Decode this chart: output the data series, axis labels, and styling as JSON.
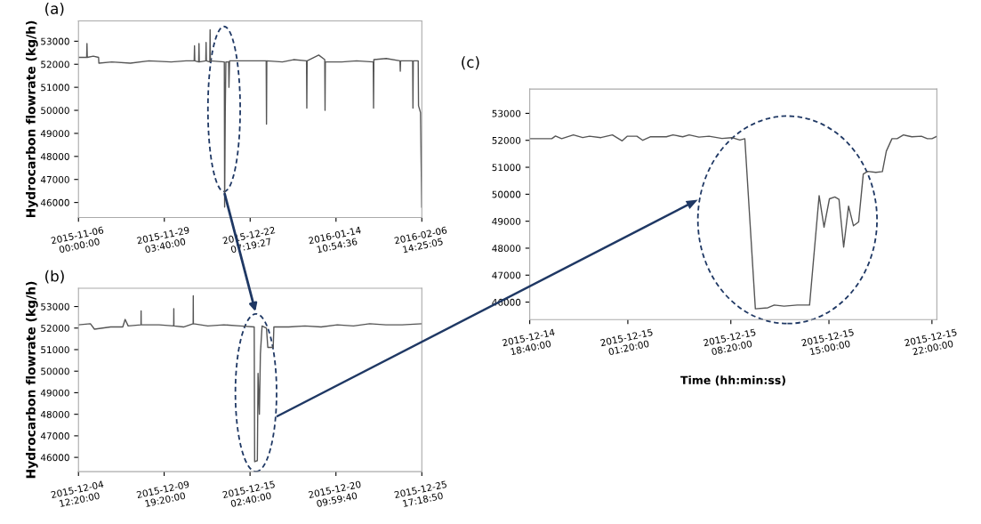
{
  "chart_data": [
    {
      "type": "line",
      "title": "(a)",
      "ylabel": "Hydrocarbon flowrate (kg/h)",
      "color": "#555555",
      "grid": false,
      "legend": false,
      "x": [
        "2015-11-06T00:00",
        "2015-11-08T05:00",
        "2015-11-08T07:00",
        "2015-11-08T09:00",
        "2015-11-10T00:00",
        "2015-11-11T10:00",
        "2015-11-11T12:00",
        "2015-11-15T00:00",
        "2015-11-20T00:00",
        "2015-11-25T00:00",
        "2015-12-01T00:00",
        "2015-12-05T00:00",
        "2015-12-07T05:00",
        "2015-12-07T07:00",
        "2015-12-07T09:00",
        "2015-12-08T10:00",
        "2015-12-08T12:00",
        "2015-12-08T14:00",
        "2015-12-10T08:00",
        "2015-12-10T10:00",
        "2015-12-10T12:00",
        "2015-12-11T10:00",
        "2015-12-11T12:00",
        "2015-12-11T14:00",
        "2015-12-15T08:00",
        "2015-12-15T10:00",
        "2015-12-15T14:00",
        "2015-12-15T18:00",
        "2015-12-16T12:00",
        "2015-12-16T14:00",
        "2015-12-16T18:00",
        "2015-12-20T00:00",
        "2015-12-26T15:00",
        "2015-12-26T17:00",
        "2015-12-26T19:00",
        "2015-12-31T00:00",
        "2016-01-03T00:00",
        "2016-01-06T12:00",
        "2016-01-06T14:00",
        "2016-01-06T16:00",
        "2016-01-09T19:00",
        "2016-01-11T10:00",
        "2016-01-11T12:00",
        "2016-01-11T14:00",
        "2016-01-16T00:00",
        "2016-01-20T00:00",
        "2016-01-24T12:00",
        "2016-01-24T14:00",
        "2016-01-24T16:00",
        "2016-01-28T00:00",
        "2016-01-31T17:00",
        "2016-01-31T19:00",
        "2016-01-31T21:00",
        "2016-02-04T03:00",
        "2016-02-04T05:00",
        "2016-02-04T07:00",
        "2016-02-05T15:00",
        "2016-02-05T17:00",
        "2016-02-06T06:00",
        "2016-02-06T10:00",
        "2016-02-06T14:00"
      ],
      "values": [
        52300,
        52300,
        52900,
        52300,
        52350,
        52300,
        52050,
        52100,
        52050,
        52150,
        52100,
        52150,
        52150,
        52800,
        52150,
        52100,
        52900,
        52100,
        52150,
        52950,
        52150,
        52100,
        53500,
        52150,
        52100,
        45800,
        49900,
        52100,
        52100,
        51000,
        52150,
        52150,
        52150,
        49400,
        52150,
        52100,
        52200,
        52150,
        50100,
        52150,
        52400,
        52200,
        50000,
        52100,
        52100,
        52150,
        52100,
        50100,
        52200,
        52250,
        52150,
        51700,
        52150,
        52150,
        50100,
        52150,
        52150,
        50200,
        49900,
        47700,
        45800
      ],
      "xlim": [
        "2015-11-06T00:00:00",
        "2016-02-06T14:25:05"
      ],
      "ylim": [
        45350,
        53880
      ],
      "xticks": [
        {
          "value": "2015-11-06T00:00:00",
          "label": "2015-11-06\n00:00:00"
        },
        {
          "value": "2015-11-29T03:40:00",
          "label": "2015-11-29\n03:40:00"
        },
        {
          "value": "2015-12-22T07:19:27",
          "label": "2015-12-22\n07:19:27"
        },
        {
          "value": "2016-01-14T10:54:36",
          "label": "2016-01-14\n10:54:36"
        },
        {
          "value": "2016-02-06T14:25:05",
          "label": "2016-02-06\n14:25:05"
        }
      ],
      "yticks": [
        46000,
        47000,
        48000,
        49000,
        50000,
        51000,
        52000,
        53000
      ]
    },
    {
      "type": "line",
      "title": "(b)",
      "ylabel": "Hydrocarbon flowrate (kg/h)",
      "color": "#555555",
      "grid": false,
      "legend": false,
      "x": [
        "2015-12-04T12:20",
        "2015-12-05T06:00",
        "2015-12-05T12:00",
        "2015-12-06T12:00",
        "2015-12-07T06:00",
        "2015-12-07T09:30",
        "2015-12-07T14:00",
        "2015-12-08T09:00",
        "2015-12-08T09:10",
        "2015-12-08T09:20",
        "2015-12-09T12:00",
        "2015-12-10T09:30",
        "2015-12-10T09:40",
        "2015-12-10T09:50",
        "2015-12-11T00:00",
        "2015-12-11T14:20",
        "2015-12-11T14:30",
        "2015-12-11T14:40",
        "2015-12-12T12:00",
        "2015-12-13T12:00",
        "2015-12-14T12:00",
        "2015-12-15T08:50",
        "2015-12-15T09:30",
        "2015-12-15T13:30",
        "2015-12-15T14:30",
        "2015-12-15T16:30",
        "2015-12-15T18:00",
        "2015-12-15T20:30",
        "2015-12-16T03:00",
        "2015-12-16T05:00",
        "2015-12-16T13:00",
        "2015-12-16T14:00",
        "2015-12-17T12:00",
        "2015-12-18T12:00",
        "2015-12-19T12:00",
        "2015-12-20T12:00",
        "2015-12-21T12:00",
        "2015-12-22T12:00",
        "2015-12-23T12:00",
        "2015-12-24T12:00",
        "2015-12-25T17:18"
      ],
      "values": [
        52150,
        52200,
        51950,
        52050,
        52050,
        52400,
        52100,
        52150,
        52800,
        52150,
        52150,
        52100,
        52900,
        52100,
        52050,
        52200,
        53500,
        52200,
        52100,
        52150,
        52100,
        52050,
        45800,
        45850,
        49900,
        48000,
        50800,
        52100,
        52000,
        51100,
        51100,
        52050,
        52050,
        52100,
        52050,
        52150,
        52100,
        52200,
        52150,
        52150,
        52200
      ],
      "xlim": [
        "2015-12-04T12:20:00",
        "2015-12-25T17:18:50"
      ],
      "ylim": [
        45340,
        53850
      ],
      "xticks": [
        {
          "value": "2015-12-04T12:20:00",
          "label": "2015-12-04\n12:20:00"
        },
        {
          "value": "2015-12-09T19:20:00",
          "label": "2015-12-09\n19:20:00"
        },
        {
          "value": "2015-12-15T02:40:00",
          "label": "2015-12-15\n02:40:00"
        },
        {
          "value": "2015-12-20T09:59:40",
          "label": "2015-12-20\n09:59:40"
        },
        {
          "value": "2015-12-25T17:18:50",
          "label": "2015-12-25\n17:18:50"
        }
      ],
      "yticks": [
        46000,
        47000,
        48000,
        49000,
        50000,
        51000,
        52000,
        53000
      ]
    },
    {
      "type": "line",
      "title": "(c)",
      "xlabel": "Time (hh:min:ss)",
      "color": "#555555",
      "grid": false,
      "legend": false,
      "x": [
        "2015-12-14T18:40",
        "2015-12-14T20:10",
        "2015-12-14T20:25",
        "2015-12-14T20:50",
        "2015-12-14T21:38",
        "2015-12-14T22:16",
        "2015-12-14T22:44",
        "2015-12-14T23:30",
        "2015-12-15T00:17",
        "2015-12-15T00:57",
        "2015-12-15T01:17",
        "2015-12-15T01:57",
        "2015-12-15T02:21",
        "2015-12-15T02:51",
        "2015-12-15T03:57",
        "2015-12-15T04:24",
        "2015-12-15T05:04",
        "2015-12-15T05:30",
        "2015-12-15T06:10",
        "2015-12-15T06:51",
        "2015-12-15T07:44",
        "2015-12-15T08:24",
        "2015-12-15T08:57",
        "2015-12-15T09:17",
        "2015-12-15T10:00",
        "2015-12-15T10:51",
        "2015-12-15T11:17",
        "2015-12-15T11:57",
        "2015-12-15T12:51",
        "2015-12-15T13:41",
        "2015-12-15T14:20",
        "2015-12-15T14:40",
        "2015-12-15T15:02",
        "2015-12-15T15:24",
        "2015-12-15T15:41",
        "2015-12-15T16:00",
        "2015-12-15T16:20",
        "2015-12-15T16:40",
        "2015-12-15T17:01",
        "2015-12-15T17:20",
        "2015-12-15T17:38",
        "2015-12-15T18:11",
        "2015-12-15T18:38",
        "2015-12-15T18:54",
        "2015-12-15T19:17",
        "2015-12-15T19:38",
        "2015-12-15T20:04",
        "2015-12-15T20:38",
        "2015-12-15T21:17",
        "2015-12-15T21:41",
        "2015-12-15T22:00",
        "2015-12-15T22:20"
      ],
      "values": [
        52060,
        52060,
        52160,
        52060,
        52200,
        52100,
        52150,
        52100,
        52200,
        51980,
        52150,
        52150,
        52000,
        52130,
        52130,
        52200,
        52130,
        52200,
        52120,
        52150,
        52070,
        52100,
        52010,
        52060,
        45750,
        45790,
        45890,
        45850,
        45890,
        45890,
        49950,
        48780,
        49830,
        49900,
        49810,
        48040,
        49560,
        48830,
        48970,
        50750,
        50850,
        50810,
        50840,
        51600,
        52060,
        52060,
        52200,
        52130,
        52150,
        52060,
        52060,
        52150
      ],
      "xlim": [
        "2015-12-14T18:40:00",
        "2015-12-15T22:20:00"
      ],
      "ylim": [
        45350,
        53900
      ],
      "xticks": [
        {
          "value": "2015-12-14T18:40:00",
          "label": "2015-12-14\n18:40:00"
        },
        {
          "value": "2015-12-15T01:20:00",
          "label": "2015-12-15\n01:20:00"
        },
        {
          "value": "2015-12-15T08:20:00",
          "label": "2015-12-15\n08:20:00"
        },
        {
          "value": "2015-12-15T15:00:00",
          "label": "2015-12-15\n15:00:00"
        },
        {
          "value": "2015-12-15T22:00:00",
          "label": "2015-12-15\n22:00:00"
        }
      ],
      "yticks": [
        46000,
        47000,
        48000,
        49000,
        50000,
        51000,
        52000,
        53000
      ]
    }
  ]
}
